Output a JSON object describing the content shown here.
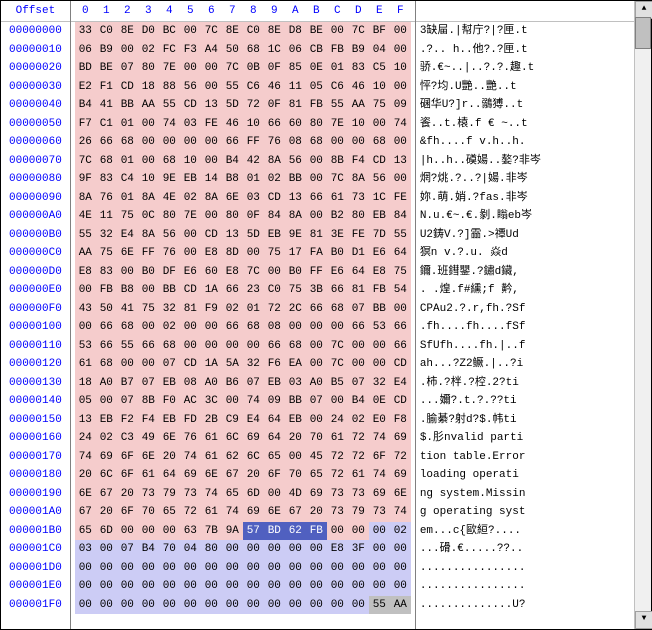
{
  "header": {
    "offset_label": "Offset",
    "hex_columns": [
      "0",
      "1",
      "2",
      "3",
      "4",
      "5",
      "6",
      "7",
      "8",
      "9",
      "A",
      "B",
      "C",
      "D",
      "E",
      "F"
    ]
  },
  "styles": {
    "pink": "#f5cccc",
    "blue": "#ccccf5",
    "selected_bg": "#5060c0",
    "selected_fg": "#ffffff",
    "gray": "#c0c0c0",
    "header_color": "#0000ff"
  },
  "rows": [
    {
      "offset": "00000000",
      "hex": [
        "33",
        "C0",
        "8E",
        "D0",
        "BC",
        "00",
        "7C",
        "8E",
        "C0",
        "8E",
        "D8",
        "BE",
        "00",
        "7C",
        "BF",
        "00"
      ],
      "ascii": "3缺屇.|幇庁?|?匣.t",
      "row_bg": "pink"
    },
    {
      "offset": "00000010",
      "hex": [
        "06",
        "B9",
        "00",
        "02",
        "FC",
        "F3",
        "A4",
        "50",
        "68",
        "1C",
        "06",
        "CB",
        "FB",
        "B9",
        "04",
        "00"
      ],
      "ascii": ".?..    h..他?.?匣.t",
      "row_bg": "pink"
    },
    {
      "offset": "00000020",
      "hex": [
        "BD",
        "BE",
        "07",
        "80",
        "7E",
        "00",
        "00",
        "7C",
        "0B",
        "0F",
        "85",
        "0E",
        "01",
        "83",
        "C5",
        "10"
      ],
      "ascii": "骄.€~..|..?.?.趣.t",
      "row_bg": "pink"
    },
    {
      "offset": "00000030",
      "hex": [
        "E2",
        "F1",
        "CD",
        "18",
        "88",
        "56",
        "00",
        "55",
        "C6",
        "46",
        "11",
        "05",
        "C6",
        "46",
        "10",
        "00"
      ],
      "ascii": "怦?均.U艷..艷..t",
      "row_bg": "pink"
    },
    {
      "offset": "00000040",
      "hex": [
        "B4",
        "41",
        "BB",
        "AA",
        "55",
        "CD",
        "13",
        "5D",
        "72",
        "0F",
        "81",
        "FB",
        "55",
        "AA",
        "75",
        "09"
      ],
      "ascii": "碅华U?]r..鶸猼..t",
      "row_bg": "pink"
    },
    {
      "offset": "00000050",
      "hex": [
        "F7",
        "C1",
        "01",
        "00",
        "74",
        "03",
        "FE",
        "46",
        "10",
        "66",
        "60",
        "80",
        "7E",
        "10",
        "00",
        "74"
      ],
      "ascii": "餈..t.榬.f € ~..t",
      "row_bg": "pink"
    },
    {
      "offset": "00000060",
      "hex": [
        "26",
        "66",
        "68",
        "00",
        "00",
        "00",
        "00",
        "66",
        "FF",
        "76",
        "08",
        "68",
        "00",
        "00",
        "68",
        "00"
      ],
      "ascii": "&fh....f  v.h..h.",
      "row_bg": "pink"
    },
    {
      "offset": "00000070",
      "hex": [
        "7C",
        "68",
        "01",
        "00",
        "68",
        "10",
        "00",
        "B4",
        "42",
        "8A",
        "56",
        "00",
        "8B",
        "F4",
        "CD",
        "13"
      ],
      "ascii": "|h..h..磸婸..嫯?非岑",
      "row_bg": "pink"
    },
    {
      "offset": "00000080",
      "hex": [
        "9F",
        "83",
        "C4",
        "10",
        "9E",
        "EB",
        "14",
        "B8",
        "01",
        "02",
        "BB",
        "00",
        "7C",
        "8A",
        "56",
        "00"
      ],
      "ascii": "焹?烑.?..?|婸.非岑",
      "row_bg": "pink"
    },
    {
      "offset": "00000090",
      "hex": [
        "8A",
        "76",
        "01",
        "8A",
        "4E",
        "02",
        "8A",
        "6E",
        "03",
        "CD",
        "13",
        "66",
        "61",
        "73",
        "1C",
        "FE"
      ],
      "ascii": "妳.萌.娋.?fas.非岑",
      "row_bg": "pink"
    },
    {
      "offset": "000000A0",
      "hex": [
        "4E",
        "11",
        "75",
        "0C",
        "80",
        "7E",
        "00",
        "80",
        "0F",
        "84",
        "8A",
        "00",
        "B2",
        "80",
        "EB",
        "84"
      ],
      "ascii": "N.u.€~.€.剶.瞈eb岑",
      "row_bg": "pink"
    },
    {
      "offset": "000000B0",
      "hex": [
        "55",
        "32",
        "E4",
        "8A",
        "56",
        "00",
        "CD",
        "13",
        "5D",
        "EB",
        "9E",
        "81",
        "3E",
        "FE",
        "7D",
        "55"
      ],
      "ascii": "U2鋳V.?]霝.>禫Ud",
      "row_bg": "pink"
    },
    {
      "offset": "000000C0",
      "hex": [
        "AA",
        "75",
        "6E",
        "FF",
        "76",
        "00",
        "E8",
        "8D",
        "00",
        "75",
        "17",
        "FA",
        "B0",
        "D1",
        "E6",
        "64"
      ],
      "ascii": "猽n  v.?.u.   焱d",
      "row_bg": "pink"
    },
    {
      "offset": "000000D0",
      "hex": [
        "E8",
        "83",
        "00",
        "B0",
        "DF",
        "E6",
        "60",
        "E8",
        "7C",
        "00",
        "B0",
        "FF",
        "E6",
        "64",
        "E8",
        "75"
      ],
      "ascii": "鑈.班鏏鑍.?鏽d鑶,",
      "row_bg": "pink"
    },
    {
      "offset": "000000E0",
      "hex": [
        "00",
        "FB",
        "B8",
        "00",
        "BB",
        "CD",
        "1A",
        "66",
        "23",
        "C0",
        "75",
        "3B",
        "66",
        "81",
        "FB",
        "54"
      ],
      "ascii": ".   .煌.f#纁;f 黅,",
      "row_bg": "pink"
    },
    {
      "offset": "000000F0",
      "hex": [
        "43",
        "50",
        "41",
        "75",
        "32",
        "81",
        "F9",
        "02",
        "01",
        "72",
        "2C",
        "66",
        "68",
        "07",
        "BB",
        "00"
      ],
      "ascii": "CPAu2.?.r,fh.?Sf",
      "row_bg": "pink"
    },
    {
      "offset": "00000100",
      "hex": [
        "00",
        "66",
        "68",
        "00",
        "02",
        "00",
        "00",
        "66",
        "68",
        "08",
        "00",
        "00",
        "00",
        "66",
        "53",
        "66"
      ],
      "ascii": ".fh....fh....fSf",
      "row_bg": "pink"
    },
    {
      "offset": "00000110",
      "hex": [
        "53",
        "66",
        "55",
        "66",
        "68",
        "00",
        "00",
        "00",
        "00",
        "66",
        "68",
        "00",
        "7C",
        "00",
        "00",
        "66"
      ],
      "ascii": "SfUfh....fh.|..f",
      "row_bg": "pink"
    },
    {
      "offset": "00000120",
      "hex": [
        "61",
        "68",
        "00",
        "00",
        "07",
        "CD",
        "1A",
        "5A",
        "32",
        "F6",
        "EA",
        "00",
        "7C",
        "00",
        "00",
        "CD"
      ],
      "ascii": "ah...?Z2鳜.|..?i",
      "row_bg": "pink"
    },
    {
      "offset": "00000130",
      "hex": [
        "18",
        "A0",
        "B7",
        "07",
        "EB",
        "08",
        "A0",
        "B6",
        "07",
        "EB",
        "03",
        "A0",
        "B5",
        "07",
        "32",
        "E4"
      ],
      "ascii": ".柿.?柈.?椌.2?ti",
      "row_bg": "pink"
    },
    {
      "offset": "00000140",
      "hex": [
        "05",
        "00",
        "07",
        "8B",
        "F0",
        "AC",
        "3C",
        "00",
        "74",
        "09",
        "BB",
        "07",
        "00",
        "B4",
        "0E",
        "CD"
      ],
      "ascii": "...嬭?.t.?.??ti",
      "row_bg": "pink"
    },
    {
      "offset": "00000150",
      "hex": [
        "13",
        "EB",
        "F2",
        "F4",
        "EB",
        "FD",
        "2B",
        "C9",
        "E4",
        "64",
        "EB",
        "00",
        "24",
        "02",
        "E0",
        "F8"
      ],
      "ascii": ".腧綦?射d?$.帏ti",
      "row_bg": "pink"
    },
    {
      "offset": "00000160",
      "hex": [
        "24",
        "02",
        "C3",
        "49",
        "6E",
        "76",
        "61",
        "6C",
        "69",
        "64",
        "20",
        "70",
        "61",
        "72",
        "74",
        "69"
      ],
      "ascii": "$.肜nvalid parti",
      "row_bg": "pink"
    },
    {
      "offset": "00000170",
      "hex": [
        "74",
        "69",
        "6F",
        "6E",
        "20",
        "74",
        "61",
        "62",
        "6C",
        "65",
        "00",
        "45",
        "72",
        "72",
        "6F",
        "72"
      ],
      "ascii": "tion table.Error",
      "row_bg": "pink"
    },
    {
      "offset": "00000180",
      "hex": [
        "20",
        "6C",
        "6F",
        "61",
        "64",
        "69",
        "6E",
        "67",
        "20",
        "6F",
        "70",
        "65",
        "72",
        "61",
        "74",
        "69"
      ],
      "ascii": " loading operati",
      "row_bg": "pink"
    },
    {
      "offset": "00000190",
      "hex": [
        "6E",
        "67",
        "20",
        "73",
        "79",
        "73",
        "74",
        "65",
        "6D",
        "00",
        "4D",
        "69",
        "73",
        "73",
        "69",
        "6E"
      ],
      "ascii": "ng system.Missin",
      "row_bg": "pink"
    },
    {
      "offset": "000001A0",
      "hex": [
        "67",
        "20",
        "6F",
        "70",
        "65",
        "72",
        "61",
        "74",
        "69",
        "6E",
        "67",
        "20",
        "73",
        "79",
        "73",
        "74"
      ],
      "ascii": "g operating syst",
      "row_bg": "pink"
    },
    {
      "offset": "000001B0",
      "hex": [
        "65",
        "6D",
        "00",
        "00",
        "00",
        "63",
        "7B",
        "9A",
        "57",
        "BD",
        "62",
        "FB",
        "00",
        "00",
        "00",
        "02"
      ],
      "ascii": "em...c{歐絙?....",
      "row_bg": "pink",
      "cell_bg": [
        "pink",
        "pink",
        "pink",
        "pink",
        "pink",
        "pink",
        "pink",
        "pink",
        "selected",
        "selected",
        "selected",
        "selected",
        "pink",
        "pink",
        "blue",
        "blue"
      ]
    },
    {
      "offset": "000001C0",
      "hex": [
        "03",
        "00",
        "07",
        "B4",
        "70",
        "04",
        "80",
        "00",
        "00",
        "00",
        "00",
        "00",
        "E8",
        "3F",
        "00",
        "00"
      ],
      "ascii": "...磆.€.....??..",
      "row_bg": "blue"
    },
    {
      "offset": "000001D0",
      "hex": [
        "00",
        "00",
        "00",
        "00",
        "00",
        "00",
        "00",
        "00",
        "00",
        "00",
        "00",
        "00",
        "00",
        "00",
        "00",
        "00"
      ],
      "ascii": "................",
      "row_bg": "blue"
    },
    {
      "offset": "000001E0",
      "hex": [
        "00",
        "00",
        "00",
        "00",
        "00",
        "00",
        "00",
        "00",
        "00",
        "00",
        "00",
        "00",
        "00",
        "00",
        "00",
        "00"
      ],
      "ascii": "................",
      "row_bg": "blue"
    },
    {
      "offset": "000001F0",
      "hex": [
        "00",
        "00",
        "00",
        "00",
        "00",
        "00",
        "00",
        "00",
        "00",
        "00",
        "00",
        "00",
        "00",
        "00",
        "55",
        "AA"
      ],
      "ascii": "..............U?",
      "row_bg": "blue",
      "cell_bg": [
        "blue",
        "blue",
        "blue",
        "blue",
        "blue",
        "blue",
        "blue",
        "blue",
        "blue",
        "blue",
        "blue",
        "blue",
        "blue",
        "blue",
        "gray",
        "gray"
      ]
    }
  ]
}
